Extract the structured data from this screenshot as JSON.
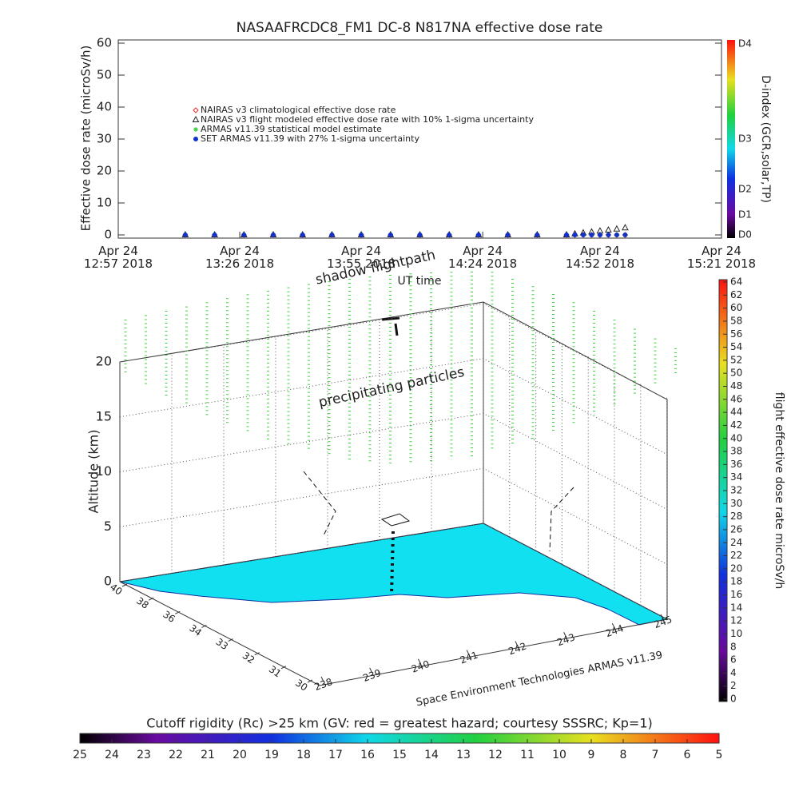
{
  "chart_data": [
    {
      "type": "scatter",
      "title": "NASAAFRCDC8_FM1 DC-8   N817NA effective dose rate",
      "xlabel": "UT time",
      "ylabel": "Effective dose rate (microSv/h)",
      "x": [
        "2018-04-24T13:13",
        "2018-04-24T13:20",
        "2018-04-24T13:27",
        "2018-04-24T13:34",
        "2018-04-24T13:41",
        "2018-04-24T13:48",
        "2018-04-24T13:55",
        "2018-04-24T14:02",
        "2018-04-24T14:09",
        "2018-04-24T14:16",
        "2018-04-24T14:23",
        "2018-04-24T14:30",
        "2018-04-24T14:37",
        "2018-04-24T14:44",
        "2018-04-24T14:46",
        "2018-04-24T14:48",
        "2018-04-24T14:50",
        "2018-04-24T14:52",
        "2018-04-24T14:54",
        "2018-04-24T14:56",
        "2018-04-24T14:58"
      ],
      "xlim": [
        "2018-04-24T12:57",
        "2018-04-24T15:21"
      ],
      "xticks": [
        {
          "value": "2018-04-24T12:57",
          "label": "Apr 24\n12:57 2018"
        },
        {
          "value": "2018-04-24T13:26",
          "label": "Apr 24\n13:26 2018"
        },
        {
          "value": "2018-04-24T13:55",
          "label": "Apr 24\n13:55 2018"
        },
        {
          "value": "2018-04-24T14:24",
          "label": "Apr 24\n14:24 2018"
        },
        {
          "value": "2018-04-24T14:52",
          "label": "Apr 24\n14:52 2018"
        },
        {
          "value": "2018-04-24T15:21",
          "label": "Apr 24\n15:21 2018"
        }
      ],
      "ylim": [
        -1,
        61
      ],
      "yticks": [
        0,
        10,
        20,
        30,
        40,
        50,
        60
      ],
      "legend": "upper left",
      "series": [
        {
          "name": "NAIRAS v3 climatological effective dose rate",
          "color": "#e03030",
          "marker": "diamond",
          "values": [
            0,
            0,
            0,
            0,
            0,
            0,
            0,
            0,
            0,
            0,
            0,
            0,
            0,
            0,
            0,
            0,
            0,
            0,
            0,
            0,
            0
          ]
        },
        {
          "name": "NAIRAS v3 flight modeled effective dose rate with 10% 1-sigma uncertainty",
          "color": "#222222",
          "marker": "triangle",
          "values": [
            0,
            0,
            0,
            0,
            0,
            0,
            0,
            0,
            0,
            0,
            0,
            0,
            0,
            0,
            0.3,
            0.6,
            0.9,
            1.2,
            1.5,
            1.8,
            2.2
          ]
        },
        {
          "name": "ARMAS v11.39 statistical model estimate",
          "color": "#33cc33",
          "marker": "asterisk",
          "values": [
            0,
            0,
            0,
            0,
            0,
            0,
            0,
            0,
            0,
            0,
            0,
            0,
            0,
            0,
            0,
            0,
            0,
            0,
            0,
            0,
            0
          ]
        },
        {
          "name": "SET ARMAS v11.39 with 27% 1-sigma uncertainty",
          "color": "#1133cc",
          "marker": "circle",
          "values": [
            0,
            0,
            0,
            0,
            0,
            0,
            0,
            0,
            0,
            0,
            0,
            0,
            0,
            0,
            0,
            0,
            0,
            0,
            0,
            0,
            0
          ]
        }
      ],
      "colorbar": {
        "label": "D-index (GCR,solar,TP)",
        "ticks": [
          "D0",
          "D1",
          "D2",
          "D3",
          "D4"
        ]
      }
    },
    {
      "type": "surface3d",
      "annotations": [
        "shadow flightpath",
        "precipitating particles"
      ],
      "zlabel": "Altitude (km)",
      "zlim": [
        0,
        20
      ],
      "zticks": [
        0,
        5,
        10,
        15,
        20
      ],
      "yticks": [
        40,
        38,
        36,
        34,
        33,
        32,
        31,
        30
      ],
      "xticks": [
        238,
        239,
        240,
        241,
        242,
        243,
        244,
        245
      ],
      "credit": "Space Environment Technologies ARMAS v11.39",
      "colorbar": {
        "label": "flight effective dose rate microSv/h",
        "lim": [
          0,
          64
        ],
        "ticks": [
          0,
          2,
          4,
          6,
          8,
          10,
          12,
          14,
          16,
          18,
          20,
          22,
          24,
          26,
          28,
          30,
          32,
          34,
          36,
          38,
          40,
          42,
          44,
          46,
          48,
          50,
          52,
          54,
          56,
          58,
          60,
          62,
          64
        ]
      },
      "colorbar2": {
        "label": "Cutoff rigidity (Rc) >25 km (GV: red = greatest hazard; courtesy SSSRC; Kp=1)",
        "lim": [
          25,
          5
        ],
        "ticks": [
          25,
          24,
          23,
          22,
          21,
          20,
          19,
          18,
          17,
          16,
          15,
          14,
          13,
          12,
          11,
          10,
          9,
          8,
          7,
          6,
          5
        ]
      }
    }
  ]
}
